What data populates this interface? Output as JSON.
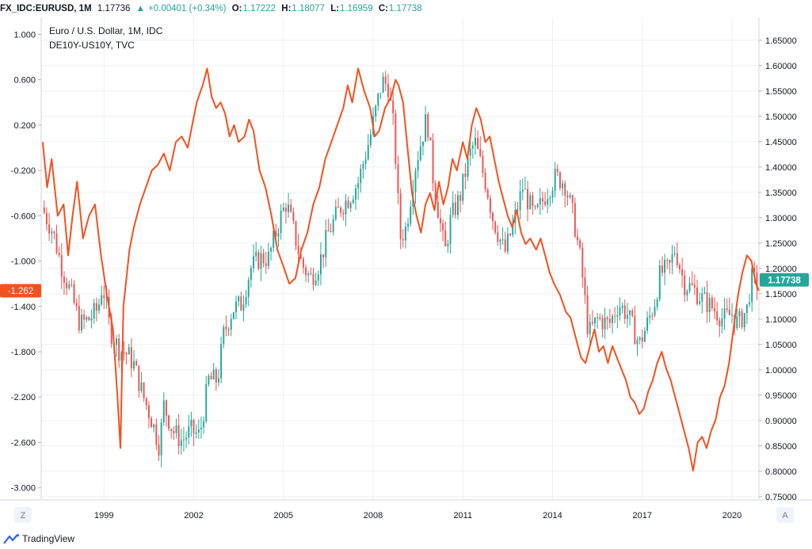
{
  "header": {
    "symbol": "FX_IDC:EURUSD, 1M",
    "last": "1.17736",
    "change": "+0.00401 (+0.34%)",
    "o_label": "O:",
    "o": "1.17222",
    "h_label": "H:",
    "h": "1.18077",
    "l_label": "L:",
    "l": "1.16959",
    "c_label": "C:",
    "c": "1.17738"
  },
  "legend": {
    "line1": "Euro / U.S. Dollar, 1M, IDC",
    "line2": "DE10Y-US10Y, TVC"
  },
  "colors": {
    "up": "#26a69a",
    "down": "#ef5350",
    "spread_line": "#f4511e",
    "grid": "#eef0f3",
    "axis_text": "#131722"
  },
  "footer": {
    "brand": "TradingView",
    "left_button": "Z",
    "right_button": "A"
  },
  "chart_data": {
    "type": "line",
    "title": "Euro / U.S. Dollar, 1M, IDC",
    "x_label": "",
    "x_ticks": [
      "1999",
      "2002",
      "2005",
      "2008",
      "2011",
      "2014",
      "2017",
      "2020"
    ],
    "x_range": [
      1996.9,
      2020.9
    ],
    "left_axis": {
      "series": "DE10Y-US10Y",
      "ticks": [
        "1.000",
        "0.600",
        "0.200",
        "-0.200",
        "-0.600",
        "-1.000",
        "-1.400",
        "-1.800",
        "-2.200",
        "-2.600",
        "-3.000"
      ],
      "range": [
        -3.1,
        1.15
      ],
      "last_value_label": "-1.262"
    },
    "right_axis": {
      "series": "EURUSD",
      "ticks": [
        "1.65000",
        "1.60000",
        "1.55000",
        "1.50000",
        "1.45000",
        "1.40000",
        "1.35000",
        "1.30000",
        "1.25000",
        "1.20000",
        "1.15000",
        "1.10000",
        "1.05000",
        "1.00000",
        "0.95000",
        "0.90000",
        "0.85000",
        "0.80000",
        "0.75000"
      ],
      "range": [
        0.745,
        1.695
      ],
      "last_value_label": "1.17738"
    },
    "series": [
      {
        "name": "EURUSD (close, approx.)",
        "axis": "right",
        "style": "candles",
        "points": [
          [
            1997.0,
            1.31
          ],
          [
            1997.3,
            1.27
          ],
          [
            1997.6,
            1.2
          ],
          [
            1997.9,
            1.15
          ],
          [
            1998.2,
            1.09
          ],
          [
            1998.5,
            1.1
          ],
          [
            1998.8,
            1.12
          ],
          [
            1998.95,
            1.17
          ],
          [
            1999.2,
            1.08
          ],
          [
            1999.5,
            1.04
          ],
          [
            1999.8,
            1.03
          ],
          [
            2000.0,
            1.01
          ],
          [
            2000.3,
            0.95
          ],
          [
            2000.6,
            0.9
          ],
          [
            2000.85,
            0.85
          ],
          [
            2001.0,
            0.93
          ],
          [
            2001.3,
            0.88
          ],
          [
            2001.6,
            0.86
          ],
          [
            2001.9,
            0.88
          ],
          [
            2002.2,
            0.87
          ],
          [
            2002.5,
            0.98
          ],
          [
            2002.8,
            0.98
          ],
          [
            2003.0,
            1.07
          ],
          [
            2003.3,
            1.12
          ],
          [
            2003.6,
            1.13
          ],
          [
            2003.9,
            1.2
          ],
          [
            2004.2,
            1.22
          ],
          [
            2004.5,
            1.22
          ],
          [
            2004.9,
            1.3
          ],
          [
            2005.1,
            1.33
          ],
          [
            2005.4,
            1.26
          ],
          [
            2005.6,
            1.21
          ],
          [
            2005.9,
            1.18
          ],
          [
            2006.2,
            1.21
          ],
          [
            2006.5,
            1.27
          ],
          [
            2006.9,
            1.32
          ],
          [
            2007.2,
            1.34
          ],
          [
            2007.5,
            1.37
          ],
          [
            2007.9,
            1.46
          ],
          [
            2008.3,
            1.57
          ],
          [
            2008.5,
            1.56
          ],
          [
            2008.7,
            1.47
          ],
          [
            2008.9,
            1.26
          ],
          [
            2009.1,
            1.28
          ],
          [
            2009.4,
            1.4
          ],
          [
            2009.8,
            1.5
          ],
          [
            2010.0,
            1.38
          ],
          [
            2010.4,
            1.23
          ],
          [
            2010.6,
            1.3
          ],
          [
            2010.9,
            1.34
          ],
          [
            2011.2,
            1.42
          ],
          [
            2011.4,
            1.45
          ],
          [
            2011.8,
            1.36
          ],
          [
            2012.0,
            1.3
          ],
          [
            2012.4,
            1.23
          ],
          [
            2012.7,
            1.29
          ],
          [
            2013.0,
            1.36
          ],
          [
            2013.4,
            1.3
          ],
          [
            2013.8,
            1.35
          ],
          [
            2014.1,
            1.38
          ],
          [
            2014.4,
            1.37
          ],
          [
            2014.7,
            1.3
          ],
          [
            2014.95,
            1.21
          ],
          [
            2015.2,
            1.07
          ],
          [
            2015.5,
            1.1
          ],
          [
            2015.9,
            1.09
          ],
          [
            2016.2,
            1.13
          ],
          [
            2016.5,
            1.11
          ],
          [
            2016.9,
            1.05
          ],
          [
            2017.1,
            1.08
          ],
          [
            2017.4,
            1.13
          ],
          [
            2017.6,
            1.19
          ],
          [
            2017.9,
            1.2
          ],
          [
            2018.1,
            1.24
          ],
          [
            2018.4,
            1.17
          ],
          [
            2018.7,
            1.16
          ],
          [
            2019.0,
            1.14
          ],
          [
            2019.4,
            1.12
          ],
          [
            2019.7,
            1.1
          ],
          [
            2020.0,
            1.11
          ],
          [
            2020.2,
            1.09
          ],
          [
            2020.5,
            1.12
          ],
          [
            2020.65,
            1.18
          ],
          [
            2020.8,
            1.17
          ],
          [
            2020.9,
            1.18
          ]
        ]
      },
      {
        "name": "DE10Y-US10Y",
        "axis": "left",
        "style": "line",
        "points": [
          [
            1996.95,
            0.05
          ],
          [
            1997.1,
            -0.35
          ],
          [
            1997.25,
            -0.1
          ],
          [
            1997.45,
            -0.6
          ],
          [
            1997.65,
            -0.5
          ],
          [
            1997.8,
            -0.95
          ],
          [
            1997.95,
            -0.6
          ],
          [
            1998.1,
            -0.3
          ],
          [
            1998.3,
            -0.8
          ],
          [
            1998.5,
            -0.6
          ],
          [
            1998.7,
            -0.5
          ],
          [
            1998.9,
            -0.95
          ],
          [
            1999.1,
            -1.3
          ],
          [
            1999.3,
            -1.6
          ],
          [
            1999.45,
            -2.2
          ],
          [
            1999.55,
            -2.65
          ],
          [
            1999.65,
            -1.4
          ],
          [
            1999.85,
            -0.9
          ],
          [
            2000.0,
            -0.7
          ],
          [
            2000.2,
            -0.5
          ],
          [
            2000.4,
            -0.35
          ],
          [
            2000.6,
            -0.2
          ],
          [
            2000.8,
            -0.15
          ],
          [
            2001.0,
            -0.05
          ],
          [
            2001.2,
            -0.2
          ],
          [
            2001.4,
            0.05
          ],
          [
            2001.6,
            0.1
          ],
          [
            2001.8,
            0.0
          ],
          [
            2001.95,
            0.2
          ],
          [
            2002.1,
            0.4
          ],
          [
            2002.3,
            0.55
          ],
          [
            2002.45,
            0.7
          ],
          [
            2002.6,
            0.45
          ],
          [
            2002.75,
            0.35
          ],
          [
            2002.9,
            0.4
          ],
          [
            2003.05,
            0.3
          ],
          [
            2003.2,
            0.1
          ],
          [
            2003.35,
            0.2
          ],
          [
            2003.5,
            0.05
          ],
          [
            2003.7,
            0.1
          ],
          [
            2003.85,
            0.25
          ],
          [
            2004.0,
            0.15
          ],
          [
            2004.2,
            -0.2
          ],
          [
            2004.4,
            -0.35
          ],
          [
            2004.6,
            -0.6
          ],
          [
            2004.8,
            -0.9
          ],
          [
            2005.0,
            -1.05
          ],
          [
            2005.2,
            -1.2
          ],
          [
            2005.4,
            -1.15
          ],
          [
            2005.6,
            -0.9
          ],
          [
            2005.8,
            -0.75
          ],
          [
            2006.0,
            -0.5
          ],
          [
            2006.2,
            -0.35
          ],
          [
            2006.4,
            -0.1
          ],
          [
            2006.6,
            0.05
          ],
          [
            2006.8,
            0.2
          ],
          [
            2007.0,
            0.35
          ],
          [
            2007.15,
            0.55
          ],
          [
            2007.3,
            0.4
          ],
          [
            2007.5,
            0.7
          ],
          [
            2007.7,
            0.5
          ],
          [
            2007.9,
            0.35
          ],
          [
            2008.05,
            0.1
          ],
          [
            2008.2,
            0.15
          ],
          [
            2008.4,
            0.35
          ],
          [
            2008.6,
            0.45
          ],
          [
            2008.75,
            0.6
          ],
          [
            2008.85,
            0.55
          ],
          [
            2009.0,
            0.4
          ],
          [
            2009.15,
            0.0
          ],
          [
            2009.3,
            -0.4
          ],
          [
            2009.45,
            -0.6
          ],
          [
            2009.6,
            -0.75
          ],
          [
            2009.75,
            -0.5
          ],
          [
            2009.9,
            -0.4
          ],
          [
            2010.05,
            -0.55
          ],
          [
            2010.2,
            -0.3
          ],
          [
            2010.35,
            -0.5
          ],
          [
            2010.5,
            -0.35
          ],
          [
            2010.65,
            -0.1
          ],
          [
            2010.8,
            -0.2
          ],
          [
            2011.0,
            0.05
          ],
          [
            2011.15,
            -0.1
          ],
          [
            2011.3,
            0.2
          ],
          [
            2011.45,
            0.35
          ],
          [
            2011.6,
            0.25
          ],
          [
            2011.75,
            0.05
          ],
          [
            2011.9,
            0.1
          ],
          [
            2012.05,
            -0.1
          ],
          [
            2012.2,
            -0.3
          ],
          [
            2012.35,
            -0.45
          ],
          [
            2012.5,
            -0.6
          ],
          [
            2012.65,
            -0.7
          ],
          [
            2012.8,
            -0.55
          ],
          [
            2012.95,
            -0.75
          ],
          [
            2013.1,
            -0.85
          ],
          [
            2013.25,
            -0.8
          ],
          [
            2013.45,
            -0.9
          ],
          [
            2013.6,
            -0.8
          ],
          [
            2013.75,
            -0.95
          ],
          [
            2013.9,
            -1.1
          ],
          [
            2014.05,
            -1.2
          ],
          [
            2014.25,
            -1.3
          ],
          [
            2014.45,
            -1.45
          ],
          [
            2014.6,
            -1.5
          ],
          [
            2014.8,
            -1.7
          ],
          [
            2014.95,
            -1.85
          ],
          [
            2015.1,
            -1.9
          ],
          [
            2015.25,
            -1.75
          ],
          [
            2015.4,
            -1.6
          ],
          [
            2015.55,
            -1.8
          ],
          [
            2015.7,
            -1.75
          ],
          [
            2015.85,
            -1.9
          ],
          [
            2016.0,
            -1.75
          ],
          [
            2016.15,
            -1.85
          ],
          [
            2016.3,
            -1.95
          ],
          [
            2016.45,
            -2.05
          ],
          [
            2016.6,
            -2.2
          ],
          [
            2016.75,
            -2.25
          ],
          [
            2016.9,
            -2.35
          ],
          [
            2017.05,
            -2.3
          ],
          [
            2017.2,
            -2.15
          ],
          [
            2017.35,
            -2.05
          ],
          [
            2017.5,
            -1.9
          ],
          [
            2017.65,
            -1.8
          ],
          [
            2017.8,
            -1.95
          ],
          [
            2017.95,
            -2.05
          ],
          [
            2018.1,
            -2.2
          ],
          [
            2018.25,
            -2.35
          ],
          [
            2018.4,
            -2.5
          ],
          [
            2018.55,
            -2.65
          ],
          [
            2018.7,
            -2.85
          ],
          [
            2018.85,
            -2.6
          ],
          [
            2019.0,
            -2.55
          ],
          [
            2019.15,
            -2.65
          ],
          [
            2019.3,
            -2.5
          ],
          [
            2019.45,
            -2.4
          ],
          [
            2019.6,
            -2.2
          ],
          [
            2019.75,
            -2.1
          ],
          [
            2019.9,
            -1.9
          ],
          [
            2020.05,
            -1.6
          ],
          [
            2020.2,
            -1.3
          ],
          [
            2020.35,
            -1.1
          ],
          [
            2020.5,
            -0.95
          ],
          [
            2020.65,
            -1.0
          ],
          [
            2020.8,
            -1.2
          ],
          [
            2020.9,
            -1.262
          ]
        ]
      }
    ]
  }
}
